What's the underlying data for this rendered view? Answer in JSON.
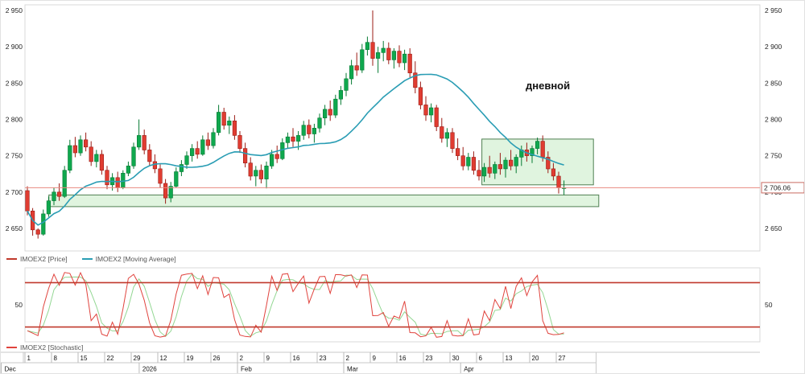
{
  "colors": {
    "candle_up": "#0fa84e",
    "candle_up_border": "#067a33",
    "candle_down": "#e03c31",
    "candle_down_border": "#9b1c15",
    "ma_line": "#2a9db4",
    "price_line": "#e88a80",
    "price_label_border": "#c96a60",
    "zone_fill": "#ddf3dc",
    "zone_border": "#4f7f52",
    "stoch_k": "#e0433d",
    "stoch_d": "#93d793",
    "stoch_level": "#c0392b",
    "axis_text": "#222222",
    "grid_border": "#d9d9d9"
  },
  "legends": {
    "price": [
      {
        "label": "IMOEX2 [Price]",
        "color": "#c0392b"
      },
      {
        "label": "IMOEX2 [Moving Average]",
        "color": "#2a9db4"
      }
    ],
    "stochastic": [
      {
        "label": "IMOEX2 [Stochastic]",
        "color": "#e0433d"
      }
    ]
  },
  "annotations": {
    "timeframe_label": "дневной"
  },
  "chart_data": [
    {
      "type": "candlestick",
      "symbol": "IMOEX2",
      "timeframe_label": "дневной",
      "ylim": [
        2620,
        2960
      ],
      "y_ticks": [
        {
          "value": 2950,
          "label": "2 950"
        },
        {
          "value": 2900,
          "label": "2 900"
        },
        {
          "value": 2850,
          "label": "2 850"
        },
        {
          "value": 2800,
          "label": "2 800"
        },
        {
          "value": 2750,
          "label": "2 750"
        },
        {
          "value": 2700,
          "label": "2 700"
        },
        {
          "value": 2650,
          "label": "2 650"
        }
      ],
      "last_price": {
        "value": 2706.06,
        "label": "2 706.06"
      },
      "ma": {
        "name": "IMOEX2 [Moving Average]",
        "window": 20
      },
      "zones": [
        {
          "name": "support-zone",
          "from_index": 4.5,
          "to_index": 108,
          "price_top": 2696,
          "price_bottom": 2680
        },
        {
          "name": "consolidation-zone",
          "from_index": 86,
          "to_index": 107,
          "price_top": 2773,
          "price_bottom": 2710
        }
      ],
      "candles": [
        [
          2702,
          2708,
          2668,
          2674
        ],
        [
          2674,
          2678,
          2640,
          2648
        ],
        [
          2648,
          2650,
          2636,
          2642
        ],
        [
          2642,
          2676,
          2640,
          2670
        ],
        [
          2670,
          2694,
          2666,
          2688
        ],
        [
          2688,
          2706,
          2682,
          2700
        ],
        [
          2700,
          2712,
          2688,
          2694
        ],
        [
          2694,
          2736,
          2692,
          2730
        ],
        [
          2730,
          2772,
          2726,
          2764
        ],
        [
          2764,
          2776,
          2748,
          2754
        ],
        [
          2754,
          2778,
          2750,
          2772
        ],
        [
          2772,
          2782,
          2756,
          2762
        ],
        [
          2762,
          2770,
          2736,
          2742
        ],
        [
          2742,
          2758,
          2734,
          2752
        ],
        [
          2752,
          2758,
          2724,
          2730
        ],
        [
          2730,
          2736,
          2704,
          2710
        ],
        [
          2710,
          2726,
          2702,
          2720
        ],
        [
          2720,
          2728,
          2700,
          2706
        ],
        [
          2706,
          2730,
          2704,
          2726
        ],
        [
          2726,
          2742,
          2722,
          2736
        ],
        [
          2736,
          2768,
          2732,
          2762
        ],
        [
          2762,
          2800,
          2758,
          2778
        ],
        [
          2778,
          2786,
          2752,
          2758
        ],
        [
          2758,
          2766,
          2736,
          2742
        ],
        [
          2742,
          2752,
          2726,
          2732
        ],
        [
          2732,
          2738,
          2706,
          2712
        ],
        [
          2712,
          2718,
          2684,
          2692
        ],
        [
          2692,
          2714,
          2686,
          2708
        ],
        [
          2708,
          2734,
          2706,
          2728
        ],
        [
          2728,
          2744,
          2722,
          2738
        ],
        [
          2738,
          2756,
          2732,
          2750
        ],
        [
          2750,
          2766,
          2742,
          2760
        ],
        [
          2760,
          2770,
          2746,
          2752
        ],
        [
          2752,
          2778,
          2750,
          2772
        ],
        [
          2772,
          2782,
          2758,
          2764
        ],
        [
          2764,
          2788,
          2760,
          2782
        ],
        [
          2782,
          2820,
          2778,
          2810
        ],
        [
          2810,
          2816,
          2786,
          2792
        ],
        [
          2792,
          2804,
          2780,
          2798
        ],
        [
          2798,
          2806,
          2772,
          2778
        ],
        [
          2778,
          2784,
          2754,
          2760
        ],
        [
          2760,
          2768,
          2734,
          2740
        ],
        [
          2740,
          2748,
          2716,
          2722
        ],
        [
          2722,
          2736,
          2708,
          2730
        ],
        [
          2730,
          2738,
          2712,
          2718
        ],
        [
          2718,
          2742,
          2705,
          2736
        ],
        [
          2736,
          2758,
          2732,
          2752
        ],
        [
          2752,
          2764,
          2740,
          2746
        ],
        [
          2746,
          2774,
          2744,
          2768
        ],
        [
          2768,
          2782,
          2760,
          2776
        ],
        [
          2776,
          2788,
          2762,
          2770
        ],
        [
          2770,
          2784,
          2758,
          2778
        ],
        [
          2778,
          2798,
          2772,
          2792
        ],
        [
          2792,
          2800,
          2774,
          2780
        ],
        [
          2780,
          2794,
          2768,
          2788
        ],
        [
          2788,
          2808,
          2782,
          2802
        ],
        [
          2802,
          2820,
          2792,
          2814
        ],
        [
          2814,
          2826,
          2798,
          2806
        ],
        [
          2806,
          2834,
          2802,
          2828
        ],
        [
          2828,
          2846,
          2820,
          2840
        ],
        [
          2840,
          2864,
          2832,
          2856
        ],
        [
          2856,
          2882,
          2848,
          2874
        ],
        [
          2874,
          2892,
          2860,
          2868
        ],
        [
          2868,
          2904,
          2864,
          2896
        ],
        [
          2896,
          2914,
          2888,
          2906
        ],
        [
          2906,
          2950,
          2874,
          2884
        ],
        [
          2884,
          2900,
          2864,
          2892
        ],
        [
          2892,
          2908,
          2880,
          2898
        ],
        [
          2898,
          2906,
          2876,
          2882
        ],
        [
          2882,
          2898,
          2870,
          2894
        ],
        [
          2894,
          2902,
          2872,
          2878
        ],
        [
          2878,
          2896,
          2868,
          2890
        ],
        [
          2890,
          2898,
          2858,
          2864
        ],
        [
          2864,
          2880,
          2836,
          2844
        ],
        [
          2844,
          2852,
          2814,
          2820
        ],
        [
          2820,
          2832,
          2798,
          2806
        ],
        [
          2806,
          2822,
          2796,
          2816
        ],
        [
          2816,
          2820,
          2784,
          2790
        ],
        [
          2790,
          2802,
          2768,
          2774
        ],
        [
          2774,
          2788,
          2762,
          2782
        ],
        [
          2782,
          2788,
          2754,
          2760
        ],
        [
          2760,
          2774,
          2744,
          2750
        ],
        [
          2750,
          2762,
          2730,
          2736
        ],
        [
          2736,
          2754,
          2730,
          2748
        ],
        [
          2748,
          2756,
          2724,
          2730
        ],
        [
          2730,
          2744,
          2716,
          2722
        ],
        [
          2722,
          2740,
          2714,
          2734
        ],
        [
          2734,
          2750,
          2720,
          2726
        ],
        [
          2726,
          2742,
          2718,
          2738
        ],
        [
          2738,
          2754,
          2724,
          2732
        ],
        [
          2732,
          2748,
          2720,
          2744
        ],
        [
          2744,
          2758,
          2730,
          2736
        ],
        [
          2736,
          2752,
          2726,
          2748
        ],
        [
          2748,
          2764,
          2736,
          2758
        ],
        [
          2758,
          2768,
          2742,
          2750
        ],
        [
          2750,
          2764,
          2740,
          2760
        ],
        [
          2760,
          2775,
          2752,
          2770
        ],
        [
          2770,
          2778,
          2742,
          2748
        ],
        [
          2748,
          2756,
          2726,
          2732
        ],
        [
          2732,
          2740,
          2716,
          2722
        ],
        [
          2722,
          2728,
          2698,
          2706
        ],
        [
          2706,
          2716,
          2696,
          2706
        ]
      ],
      "x_ticks": [
        {
          "index": 0,
          "label": "1"
        },
        {
          "index": 5,
          "label": "8"
        },
        {
          "index": 10,
          "label": "15"
        },
        {
          "index": 15,
          "label": "22"
        },
        {
          "index": 20,
          "label": "29"
        },
        {
          "index": 25,
          "label": "12"
        },
        {
          "index": 30,
          "label": "19"
        },
        {
          "index": 35,
          "label": "26"
        },
        {
          "index": 40,
          "label": "2"
        },
        {
          "index": 45,
          "label": "9"
        },
        {
          "index": 50,
          "label": "16"
        },
        {
          "index": 55,
          "label": "23"
        },
        {
          "index": 60,
          "label": "2"
        },
        {
          "index": 65,
          "label": "9"
        },
        {
          "index": 70,
          "label": "16"
        },
        {
          "index": 75,
          "label": "23"
        },
        {
          "index": 80,
          "label": "30"
        },
        {
          "index": 85,
          "label": "6"
        },
        {
          "index": 90,
          "label": "13"
        },
        {
          "index": 95,
          "label": "20"
        },
        {
          "index": 100,
          "label": "27"
        }
      ],
      "month_cells": [
        {
          "index": -4.5,
          "label": "Dec"
        },
        {
          "index": 21.5,
          "label": "2026"
        },
        {
          "index": 40,
          "label": "Feb"
        },
        {
          "index": 60,
          "label": "Mar"
        },
        {
          "index": 82,
          "label": "Apr"
        }
      ],
      "axis_end_index": 107.5
    },
    {
      "type": "line",
      "name": "IMOEX2 [Stochastic]",
      "range": [
        0,
        100
      ],
      "levels": [
        80,
        20
      ],
      "mid_axis_label": "50",
      "k_period": 5,
      "d_period": 3,
      "derived_from": "candles"
    }
  ]
}
